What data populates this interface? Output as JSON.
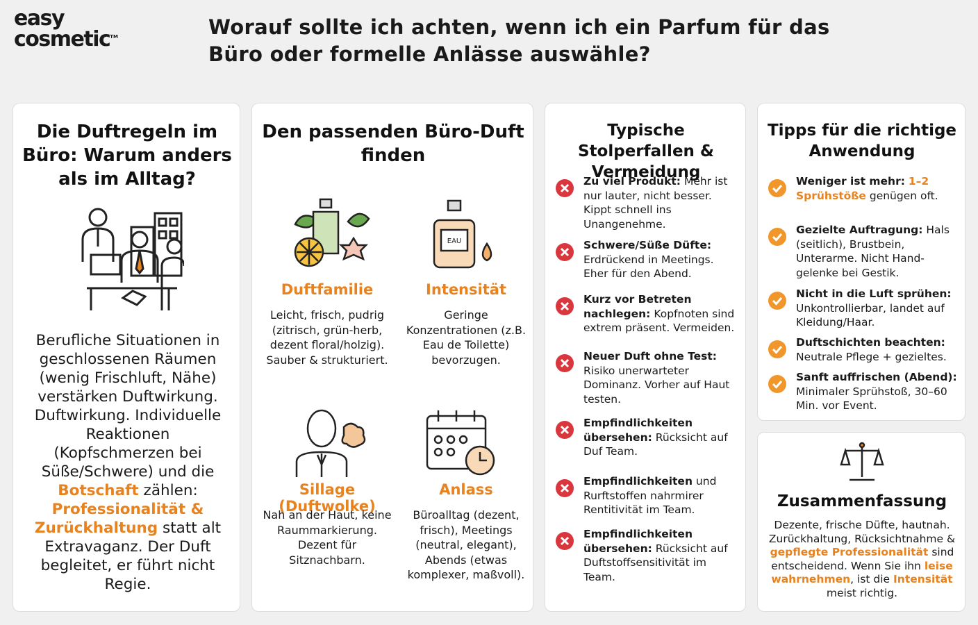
{
  "header": {
    "logo": {
      "line1": "easy",
      "line2": "cosmetic",
      "mark": "TM"
    },
    "title": "Worauf sollte ich achten, wenn ich ein Parfum für das Büro oder formelle Anlässe auswähle?"
  },
  "rules": {
    "title": "Die Duftregeln im Büro: Warum anders als im Alltag?",
    "text": [
      "Berufliche Situationen in geschlossenen Räumen (wenig Frischluft, Nähe) verstärken Duftwirkung. Duftwirkung. Individuelle Reaktionen (Kopfschmerzen bei Süße/Schwere) und die ",
      {
        "text": "Botschaft",
        "color": "#e8821e"
      },
      " zählen: ",
      {
        "text": "Professionalität & Zurückhaltung",
        "color": "#e8821e"
      },
      " statt alt Extravaganz. Der Duft begleitet, er führt nicht Regie."
    ]
  },
  "finder": {
    "title": "Den passenden Büro-Duft finden",
    "icon_label": "EAU",
    "items": [
      {
        "title": "Duftfamilie",
        "text": "Leicht, frisch, pudrig (zitrisch, grün-herb, dezent floral/holzig). Sauber & strukturiert."
      },
      {
        "title": "Intensität",
        "text": "Geringe Konzentrationen (z.B. Eau de Toilette) bevorzugen."
      },
      {
        "title": "Sillage (Duftwolke)",
        "text": "Nah an der Haut, keine Raummarkierung. Dezent für Sitznachbarn."
      },
      {
        "title": "Anlass",
        "text": "Büroalltag (dezent, frisch), Meetings (neutral, elegant), Abends (etwas komplexer, maßvoll)."
      }
    ]
  },
  "pitfalls": {
    "title": "Typische Stolperfallen & Vermeidung",
    "items": [
      {
        "title": "Zu viel Produkt:",
        "text": [
          "Mehr ist nur lauter, nicht besser. Kippt schnell ins Unangenehme."
        ]
      },
      {
        "title": "Schwere/Süße Düfte:",
        "text": [
          "Erdrückend in Meetings. Eher für den Abend."
        ]
      },
      {
        "title": "Kurz vor Betreten nachlegen:",
        "text": [
          "Kopfnoten sind extrem präsent. Vermeiden."
        ]
      },
      {
        "title": "Neuer Duft ohne Test:",
        "text": [
          "Risiko unerwarteter Dominanz. Vorher auf Haut testen."
        ]
      },
      {
        "title": "Empfindlichkeiten übersehen:",
        "text": [
          "Rücksicht auf Duf Team."
        ]
      },
      {
        "title": "Empfindlichkeiten",
        "text": [
          "und Rurftstoffen nahrmirer Rentitivität im Team."
        ]
      },
      {
        "title": "Empfindlichkeiten übersehen:",
        "text": [
          "Rücksicht auf Duftstoffsensitivität im Team."
        ]
      }
    ]
  },
  "tips": {
    "title": "Tipps für die richtige Anwendung",
    "items": [
      {
        "title": "Weniger ist mehr:",
        "text": [
          {
            "text": "1–2 Sprühstöße",
            "color": "#e8821e"
          },
          " genügen oft."
        ]
      },
      {
        "title": "Gezielte Auftragung:",
        "text": [
          "Hals (seitlich), Brustbein, Unterarme. Nicht Hand-gelenke bei Gestik."
        ]
      },
      {
        "title": "Nicht in die Luft sprühen:",
        "text": [
          "Unkontrollierbar, landet auf Kleidung/Haar."
        ]
      },
      {
        "title": "Duftschichten beachten:",
        "text": [
          "Neutrale Pflege + gezieltes."
        ]
      },
      {
        "title": "Sanft auffrischen (Abend):",
        "text": [
          "Minimaler Sprühstoß, 30–60 Min. vor Event."
        ]
      }
    ]
  },
  "summary": {
    "title": "Zusammenfassung",
    "text": [
      "Dezente, frische Düfte, hautnah. Zurückhaltung, Rücksichtnahme & ",
      {
        "text": "gepflegte Professionalität",
        "color": "#e8821e"
      },
      " sind entscheidend. Wenn Sie ihn ",
      {
        "text": "leise wahrnehmen",
        "color": "#e8821e"
      },
      ", ist die ",
      {
        "text": "Intensität",
        "color": "#e8821e"
      },
      " meist richtig."
    ]
  }
}
